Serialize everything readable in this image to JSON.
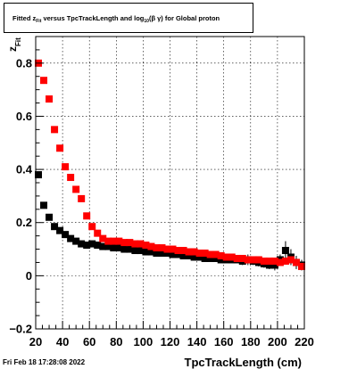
{
  "title_parts": {
    "p1": "Fitted  z",
    "p1_sub": "Fit",
    "p2": "  versus TpcTrackLength and log",
    "p2_sub": "10",
    "p3": "(β  γ) for Global proton"
  },
  "footer_timestamp": "Fri Feb 18 17:28:08 2022",
  "colors": {
    "red": "#ff0000",
    "black": "#000000"
  },
  "chart_data": {
    "type": "scatter",
    "xlabel": "TpcTrackLength (cm)",
    "ylabel_main": "z",
    "ylabel_sub": "Fit",
    "xlim": [
      20,
      220
    ],
    "ylim": [
      -0.2,
      0.9
    ],
    "x_ticks": [
      20,
      40,
      60,
      80,
      100,
      120,
      140,
      160,
      180,
      200,
      220
    ],
    "x_tick_labels": [
      "20",
      "40",
      "60",
      "80",
      "100",
      "120",
      "140",
      "160",
      "180",
      "200",
      "220"
    ],
    "y_ticks": [
      -0.2,
      0,
      0.2,
      0.4,
      0.6,
      0.8
    ],
    "y_tick_labels": [
      "−0.2",
      "0",
      "0.2",
      "0.4",
      "0.6",
      "0.8"
    ],
    "grid": true,
    "series": [
      {
        "color": "#000000",
        "points": [
          [
            22,
            0.38,
            0.01
          ],
          [
            26,
            0.265,
            0.01
          ],
          [
            30,
            0.22,
            0.01
          ],
          [
            34,
            0.185,
            0.01
          ],
          [
            38,
            0.17,
            0.01
          ],
          [
            42,
            0.155,
            0.01
          ],
          [
            46,
            0.14,
            0.01
          ],
          [
            50,
            0.13,
            0.01
          ],
          [
            54,
            0.12,
            0.01
          ],
          [
            58,
            0.115,
            0.01
          ],
          [
            62,
            0.12,
            0.01
          ],
          [
            66,
            0.115,
            0.01
          ],
          [
            70,
            0.11,
            0.01
          ],
          [
            74,
            0.11,
            0.01
          ],
          [
            78,
            0.105,
            0.01
          ],
          [
            82,
            0.105,
            0.01
          ],
          [
            86,
            0.1,
            0.01
          ],
          [
            90,
            0.1,
            0.01
          ],
          [
            94,
            0.095,
            0.01
          ],
          [
            98,
            0.095,
            0.01
          ],
          [
            102,
            0.09,
            0.01
          ],
          [
            106,
            0.09,
            0.01
          ],
          [
            110,
            0.085,
            0.01
          ],
          [
            114,
            0.085,
            0.01
          ],
          [
            118,
            0.085,
            0.01
          ],
          [
            122,
            0.08,
            0.01
          ],
          [
            126,
            0.08,
            0.01
          ],
          [
            130,
            0.075,
            0.01
          ],
          [
            134,
            0.075,
            0.01
          ],
          [
            138,
            0.07,
            0.01
          ],
          [
            142,
            0.07,
            0.01
          ],
          [
            146,
            0.065,
            0.01
          ],
          [
            150,
            0.065,
            0.01
          ],
          [
            154,
            0.065,
            0.01
          ],
          [
            158,
            0.06,
            0.01
          ],
          [
            162,
            0.06,
            0.01
          ],
          [
            166,
            0.06,
            0.01
          ],
          [
            170,
            0.06,
            0.01
          ],
          [
            174,
            0.055,
            0.015
          ],
          [
            178,
            0.06,
            0.02
          ],
          [
            182,
            0.055,
            0.015
          ],
          [
            186,
            0.05,
            0.015
          ],
          [
            190,
            0.045,
            0.015
          ],
          [
            194,
            0.04,
            0.015
          ],
          [
            198,
            0.04,
            0.02
          ],
          [
            202,
            0.06,
            0.02
          ],
          [
            206,
            0.095,
            0.035
          ],
          [
            210,
            0.07,
            0.03
          ],
          [
            214,
            0.05,
            0.025
          ],
          [
            218,
            0.04,
            0.02
          ]
        ]
      },
      {
        "color": "#ff0000",
        "points": [
          [
            22,
            0.8,
            0.005
          ],
          [
            26,
            0.735,
            0.005
          ],
          [
            30,
            0.665,
            0.005
          ],
          [
            34,
            0.55,
            0.005
          ],
          [
            38,
            0.48,
            0.005
          ],
          [
            42,
            0.41,
            0.005
          ],
          [
            46,
            0.37,
            0.005
          ],
          [
            50,
            0.325,
            0.005
          ],
          [
            54,
            0.29,
            0.005
          ],
          [
            58,
            0.225,
            0.005
          ],
          [
            62,
            0.185,
            0.005
          ],
          [
            66,
            0.16,
            0.005
          ],
          [
            70,
            0.14,
            0.005
          ],
          [
            74,
            0.13,
            0.005
          ],
          [
            78,
            0.13,
            0.005
          ],
          [
            82,
            0.13,
            0.005
          ],
          [
            86,
            0.125,
            0.005
          ],
          [
            90,
            0.125,
            0.005
          ],
          [
            94,
            0.12,
            0.005
          ],
          [
            98,
            0.12,
            0.005
          ],
          [
            102,
            0.115,
            0.005
          ],
          [
            106,
            0.11,
            0.005
          ],
          [
            110,
            0.105,
            0.005
          ],
          [
            114,
            0.105,
            0.005
          ],
          [
            118,
            0.1,
            0.005
          ],
          [
            122,
            0.1,
            0.005
          ],
          [
            126,
            0.095,
            0.005
          ],
          [
            130,
            0.095,
            0.005
          ],
          [
            134,
            0.09,
            0.005
          ],
          [
            138,
            0.09,
            0.005
          ],
          [
            142,
            0.085,
            0.005
          ],
          [
            146,
            0.085,
            0.005
          ],
          [
            150,
            0.08,
            0.005
          ],
          [
            154,
            0.08,
            0.005
          ],
          [
            158,
            0.075,
            0.005
          ],
          [
            162,
            0.07,
            0.005
          ],
          [
            166,
            0.07,
            0.005
          ],
          [
            170,
            0.065,
            0.005
          ],
          [
            174,
            0.065,
            0.005
          ],
          [
            178,
            0.06,
            0.005
          ],
          [
            182,
            0.06,
            0.005
          ],
          [
            186,
            0.06,
            0.005
          ],
          [
            190,
            0.055,
            0.005
          ],
          [
            194,
            0.055,
            0.005
          ],
          [
            198,
            0.055,
            0.005
          ],
          [
            202,
            0.05,
            0.005
          ],
          [
            206,
            0.055,
            0.005
          ],
          [
            210,
            0.06,
            0.01
          ],
          [
            214,
            0.05,
            0.01
          ],
          [
            218,
            0.035,
            0.01
          ]
        ]
      }
    ]
  }
}
